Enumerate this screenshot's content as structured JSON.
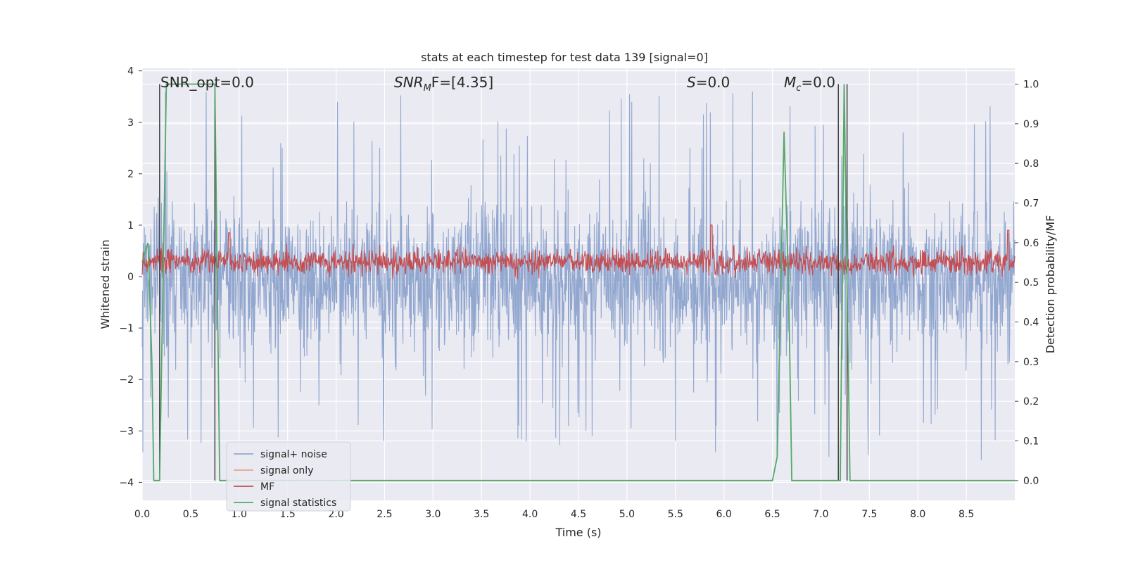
{
  "chart_data": {
    "type": "line",
    "title": "stats at each timestep for test data 139 [signal=0]",
    "xlabel": "Time (s)",
    "ylabel": "Whitened strain",
    "y2label": "Detection probability/MF",
    "xlim": [
      0.0,
      9.0
    ],
    "ylim": [
      -4.35,
      4.05
    ],
    "y2lim": [
      -0.05,
      1.04
    ],
    "xticks": [
      "0.0",
      "0.5",
      "1.0",
      "1.5",
      "2.0",
      "2.5",
      "3.0",
      "3.5",
      "4.0",
      "4.5",
      "5.0",
      "5.5",
      "6.0",
      "6.5",
      "7.0",
      "7.5",
      "8.0",
      "8.5"
    ],
    "yticks": [
      "4",
      "3",
      "2",
      "1",
      "0",
      "−1",
      "−2",
      "−3",
      "−4"
    ],
    "y2ticks": [
      "1.0",
      "0.9",
      "0.8",
      "0.7",
      "0.6",
      "0.5",
      "0.4",
      "0.3",
      "0.2",
      "0.1",
      "0.0"
    ],
    "grid": true,
    "legend_position": "lower-left",
    "annotations": {
      "snr_opt": "SNR_opt=0.0",
      "snr_mf_base": "SNR",
      "snr_mf_sub": "M",
      "snr_mf_rest": "F=[4.35]",
      "s_var": "S",
      "s_rest": "=0.0",
      "mc_var": "M",
      "mc_sub": "c",
      "mc_rest": "=0.0"
    },
    "series": [
      {
        "name": "signal+ noise",
        "color": "#8da3cc",
        "axis": "left",
        "style": "dense noise band",
        "envelope_upper_approx": 2.0,
        "envelope_lower_approx": -1.9,
        "peak_max_approx": 3.7,
        "peak_min_approx": -3.85,
        "duration": 9.0
      },
      {
        "name": "signal only",
        "color": "#e8a48a",
        "axis": "left",
        "note": "zero for this example",
        "values": []
      },
      {
        "name": "MF",
        "color": "#c44e52",
        "axis": "left",
        "style": "dense band",
        "band_lower_approx": 0.0,
        "band_upper_approx": 0.6,
        "peaks": [
          [
            0.9,
            0.85
          ],
          [
            5.87,
            1.0
          ],
          [
            8.93,
            0.9
          ]
        ]
      },
      {
        "name": "signal statistics",
        "color": "#55a868",
        "axis": "right",
        "x": [
          0.0,
          0.06,
          0.1,
          0.12,
          0.18,
          0.25,
          0.3,
          0.7,
          0.75,
          0.8,
          1.0,
          6.5,
          6.55,
          6.62,
          6.67,
          6.7,
          7.15,
          7.18,
          7.2,
          7.24,
          7.3,
          9.0
        ],
        "y": [
          0.55,
          0.6,
          0.3,
          0.0,
          0.0,
          1.0,
          1.0,
          1.0,
          1.0,
          0.0,
          0.0,
          0.0,
          0.06,
          0.88,
          0.45,
          0.0,
          0.0,
          0.0,
          0.0,
          1.0,
          0.0,
          0.0
        ]
      }
    ],
    "vertical_markers": [
      0.18,
      0.75,
      7.18,
      7.27
    ]
  }
}
